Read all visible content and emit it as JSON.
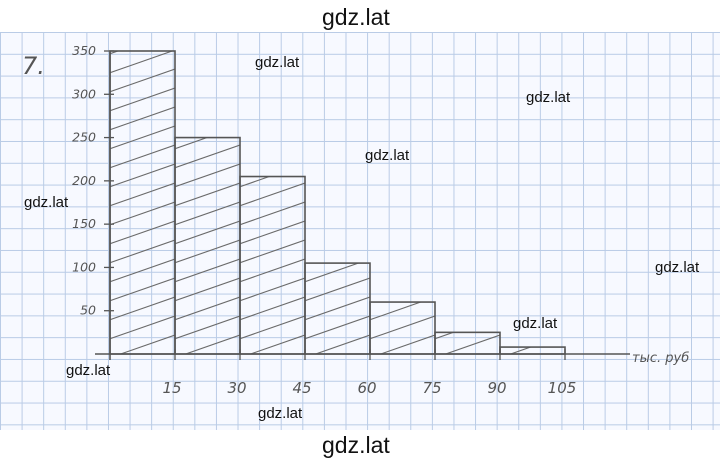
{
  "task_number": "7.",
  "watermarks": [
    "gdz.lat",
    "gdz.lat",
    "gdz.lat",
    "gdz.lat",
    "gdz.lat",
    "gdz.lat",
    "gdz.lat",
    "gdz.lat",
    "gdz.lat",
    "gdz.lat"
  ],
  "chart_data": {
    "type": "bar",
    "title": "",
    "xlabel": "тыс. руб",
    "ylabel": "",
    "x_ticks": [
      "15",
      "30",
      "45",
      "60",
      "75",
      "90",
      "105"
    ],
    "y_ticks": [
      "50",
      "100",
      "150",
      "200",
      "250",
      "300",
      "350"
    ],
    "ylim": [
      0,
      350
    ],
    "xlim": [
      0,
      105
    ],
    "bins": [
      {
        "from": 0,
        "to": 15,
        "value": 350
      },
      {
        "from": 15,
        "to": 30,
        "value": 250
      },
      {
        "from": 30,
        "to": 45,
        "value": 205
      },
      {
        "from": 45,
        "to": 60,
        "value": 105
      },
      {
        "from": 60,
        "to": 75,
        "value": 60
      },
      {
        "from": 75,
        "to": 90,
        "value": 25
      },
      {
        "from": 90,
        "to": 105,
        "value": 8
      }
    ],
    "grid": true,
    "colors": {
      "ink": "#555555",
      "hatch": "#6a6a6a",
      "grid": "#b9cbe6"
    }
  }
}
